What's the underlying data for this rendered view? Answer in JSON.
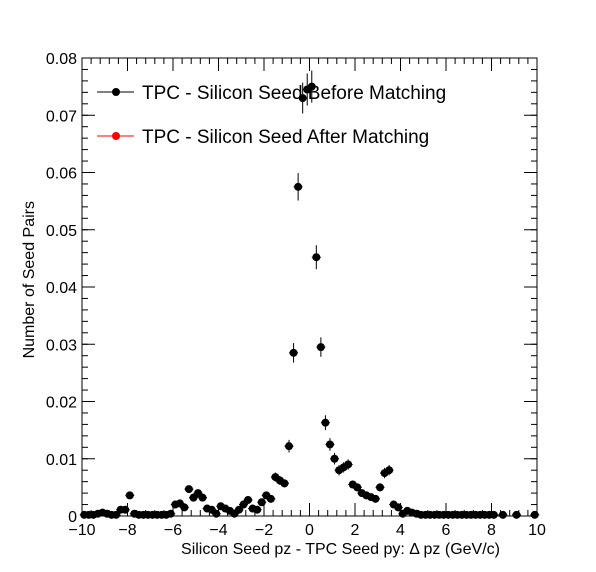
{
  "chart_data": {
    "type": "scatter",
    "xlabel": "Silicon Seed pz - TPC Seed py:      Δ pz (GeV/c)",
    "ylabel": "Number of Seed Pairs",
    "xlim": [
      -10,
      10
    ],
    "ylim": [
      0,
      0.08
    ],
    "x_ticks": [
      -10,
      -8,
      -6,
      -4,
      -2,
      0,
      2,
      4,
      6,
      8,
      10
    ],
    "x_tick_labels": [
      "−10",
      "−8",
      "−6",
      "−4",
      "−2",
      "0",
      "2",
      "4",
      "6",
      "8",
      "10"
    ],
    "y_ticks": [
      0,
      0.01,
      0.02,
      0.03,
      0.04,
      0.05,
      0.06,
      0.07,
      0.08
    ],
    "y_tick_labels": [
      "0",
      "0.01",
      "0.02",
      "0.03",
      "0.04",
      "0.05",
      "0.06",
      "0.07",
      "0.08"
    ],
    "grid": false,
    "legend_position": "top-left",
    "series": [
      {
        "name": "TPC - Silicon Seed Before Matching",
        "color": "#000000",
        "x": [
          -9.9,
          -9.7,
          -9.5,
          -9.3,
          -9.1,
          -8.9,
          -8.7,
          -8.5,
          -8.3,
          -8.1,
          -7.9,
          -7.7,
          -7.5,
          -7.3,
          -7.1,
          -6.9,
          -6.7,
          -6.5,
          -6.3,
          -6.1,
          -5.9,
          -5.7,
          -5.5,
          -5.3,
          -5.1,
          -4.9,
          -4.7,
          -4.5,
          -4.3,
          -4.1,
          -3.9,
          -3.7,
          -3.5,
          -3.3,
          -3.1,
          -2.9,
          -2.7,
          -2.5,
          -2.3,
          -2.1,
          -1.9,
          -1.7,
          -1.5,
          -1.3,
          -1.1,
          -0.9,
          -0.7,
          -0.5,
          -0.3,
          -0.1,
          0.1,
          0.3,
          0.5,
          0.7,
          0.9,
          1.1,
          1.3,
          1.5,
          1.7,
          1.9,
          2.1,
          2.3,
          2.5,
          2.7,
          2.9,
          3.1,
          3.3,
          3.5,
          3.7,
          3.9,
          4.1,
          4.3,
          4.5,
          4.7,
          4.9,
          5.1,
          5.3,
          5.5,
          5.7,
          5.9,
          6.1,
          6.3,
          6.5,
          6.7,
          6.9,
          7.1,
          7.3,
          7.5,
          7.7,
          7.9,
          8.1,
          8.5,
          9.1,
          9.9
        ],
        "y": [
          0.0002,
          0.0002,
          0.0002,
          0.0004,
          0.0006,
          0.0004,
          0.0002,
          0.0002,
          0.0011,
          0.0011,
          0.0036,
          0.0004,
          0.0002,
          0.0002,
          0.0002,
          0.0002,
          0.0002,
          0.0002,
          0.0002,
          0.0004,
          0.002,
          0.0022,
          0.0015,
          0.0047,
          0.0032,
          0.004,
          0.0032,
          0.0013,
          0.0011,
          0.0004,
          0.0017,
          0.0013,
          0.0009,
          0.0004,
          0.0011,
          0.002,
          0.0028,
          0.0013,
          0.0011,
          0.0024,
          0.0036,
          0.003,
          0.0068,
          0.0062,
          0.0057,
          0.0122,
          0.0285,
          0.0575,
          0.073,
          0.0745,
          0.075,
          0.0452,
          0.0295,
          0.0163,
          0.0125,
          0.01,
          0.008,
          0.0085,
          0.009,
          0.0055,
          0.005,
          0.004,
          0.0036,
          0.0033,
          0.003,
          0.005,
          0.0075,
          0.008,
          0.002,
          0.0015,
          0.0004,
          0.0009,
          0.0006,
          0.0004,
          0.0002,
          0.0002,
          0.0002,
          0.0002,
          0.0002,
          0.0002,
          0.0002,
          0.0002,
          0.0002,
          0.0002,
          0.0002,
          0.0002,
          0.0002,
          0.0002,
          0.0002,
          0.0002,
          0.0002,
          0.0002,
          0.0002,
          0.0002
        ],
        "err": [
          0,
          0,
          0,
          0,
          0,
          0,
          0,
          0,
          0.0004,
          0.0004,
          0.0006,
          0,
          0,
          0,
          0,
          0,
          0,
          0,
          0,
          0,
          0.0005,
          0.0005,
          0.0004,
          0.0006,
          0.0005,
          0.0006,
          0.0005,
          0.0004,
          0.0004,
          0,
          0.0004,
          0.0004,
          0.0003,
          0,
          0.0004,
          0.0005,
          0.0006,
          0.0004,
          0.0004,
          0.0005,
          0.0006,
          0.0005,
          0.0008,
          0.0008,
          0.0007,
          0.0011,
          0.0017,
          0.0024,
          0.0027,
          0.0028,
          0.0028,
          0.0021,
          0.0017,
          0.0013,
          0.0011,
          0.001,
          0.0009,
          0.0009,
          0.0009,
          0.0007,
          0.0007,
          0.0006,
          0.0006,
          0.0006,
          0.0005,
          0.0007,
          0.0009,
          0.0009,
          0.0004,
          0.0004,
          0,
          0.0003,
          0,
          0,
          0,
          0,
          0,
          0,
          0,
          0,
          0,
          0,
          0,
          0,
          0,
          0,
          0,
          0,
          0,
          0,
          0,
          0,
          0,
          0
        ]
      },
      {
        "name": "TPC - Silicon Seed After Matching",
        "color": "#ff0000",
        "x": [],
        "y": [],
        "err": []
      }
    ]
  }
}
